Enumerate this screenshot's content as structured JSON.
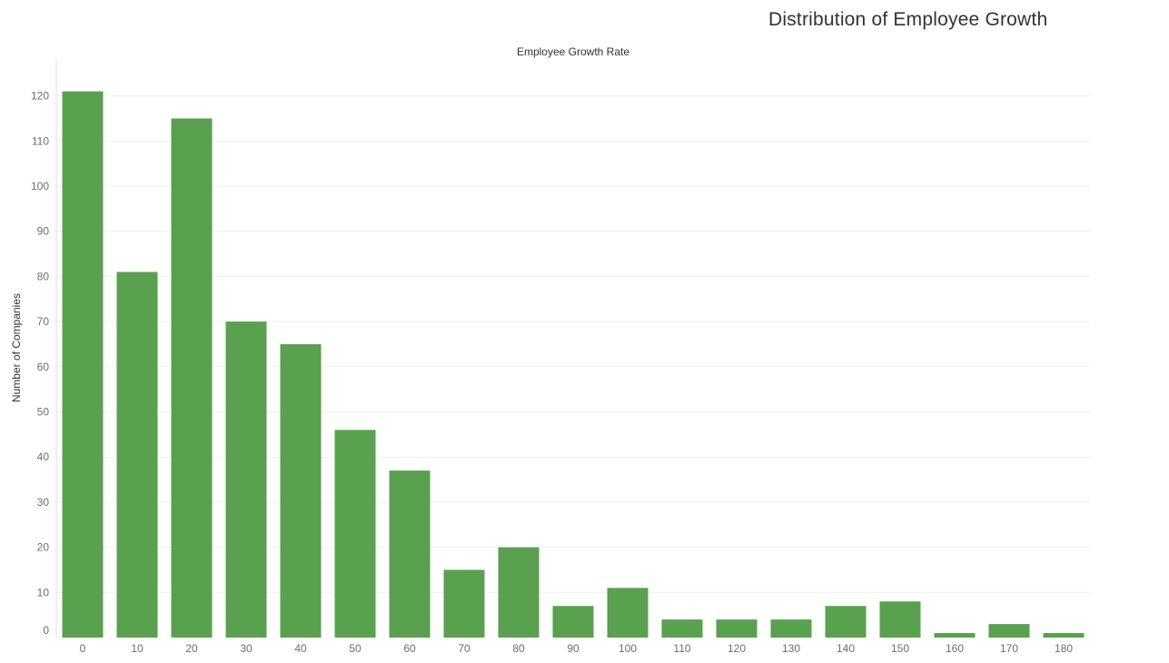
{
  "title": "Distribution of Employee Growth",
  "chart_data": {
    "type": "bar",
    "title": "Distribution of Employee Growth",
    "xlabel": "Employee Growth Rate",
    "ylabel": "Number of Companies",
    "categories": [
      "0",
      "10",
      "20",
      "30",
      "40",
      "50",
      "60",
      "70",
      "80",
      "90",
      "100",
      "110",
      "120",
      "130",
      "140",
      "150",
      "160",
      "170",
      "180"
    ],
    "values": [
      121,
      81,
      115,
      70,
      65,
      46,
      37,
      15,
      20,
      7,
      11,
      4,
      4,
      4,
      7,
      8,
      1,
      3,
      1
    ],
    "yticks": [
      "0",
      "10",
      "20",
      "30",
      "40",
      "50",
      "60",
      "70",
      "80",
      "90",
      "100",
      "110",
      "120"
    ],
    "ylim": [
      0,
      120
    ],
    "grid": true,
    "bar_color": "#59a14f"
  }
}
